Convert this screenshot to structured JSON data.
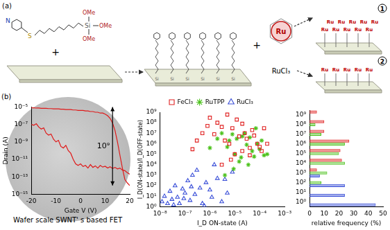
{
  "panel_a": {
    "label": "(a)",
    "molecule": {
      "ring_atom": "N",
      "linker_atom": "S",
      "anchor_atom": "Si",
      "methoxy": [
        "OMe",
        "OMe",
        "OMe"
      ]
    },
    "plus": "+",
    "complex_atom": "Ru",
    "salt": "RuCl₃",
    "routes": [
      "1",
      "2"
    ],
    "surface_atom": "Si"
  },
  "panel_b_label": "(b)",
  "chart_data": [
    {
      "type": "line",
      "x_label": "Gate V (V)",
      "y_label": "Drain (A)",
      "caption": "Wafer scale SWNT' s based FET",
      "x": [
        -20,
        -19,
        -18,
        -17,
        -16,
        -15,
        -14,
        -13,
        -12,
        -11,
        -10,
        -9,
        -8,
        -7,
        -6,
        -5,
        -4,
        -3,
        -2,
        -1,
        0,
        1,
        2,
        3,
        4,
        5,
        6,
        7,
        8,
        9,
        10,
        11,
        12,
        13,
        14,
        15,
        16,
        17,
        18,
        19,
        20
      ],
      "series": [
        {
          "color": "#e01818",
          "values": [
            8e-06,
            8e-06,
            7.5e-06,
            7.5e-06,
            7e-06,
            7e-06,
            7e-06,
            6.5e-06,
            6.5e-06,
            6e-06,
            6e-06,
            6e-06,
            5.5e-06,
            5.5e-06,
            5e-06,
            5e-06,
            5e-06,
            4.5e-06,
            4.5e-06,
            4e-06,
            4e-06,
            4e-06,
            3.5e-06,
            3.5e-06,
            3e-06,
            3e-06,
            2.5e-06,
            2.5e-06,
            2e-06,
            2e-06,
            1.5e-06,
            1e-06,
            5e-07,
            1.5e-07,
            2e-08,
            1e-09,
            3e-11,
            1e-12,
            5e-14,
            2e-14,
            1e-14
          ]
        },
        {
          "color": "#e01818",
          "values": [
            1e-07,
            8e-08,
            1.2e-07,
            5e-08,
            3e-08,
            4e-08,
            1e-08,
            6e-09,
            8e-09,
            2e-09,
            1e-09,
            1.5e-09,
            3e-10,
            2e-10,
            4e-10,
            1e-10,
            5e-11,
            1e-11,
            3e-12,
            2e-12,
            3e-12,
            1.5e-12,
            2e-12,
            1e-12,
            2.5e-12,
            1.2e-12,
            1.8e-12,
            1e-12,
            2e-12,
            1.3e-12,
            1.6e-12,
            1e-12,
            1.4e-12,
            9e-13,
            1.2e-12,
            8e-13,
            1e-12,
            6e-13,
            5e-13,
            3e-13,
            2e-13
          ]
        }
      ],
      "xlim": [
        -20,
        20
      ],
      "xticks": [
        -20,
        -10,
        0,
        10,
        20
      ],
      "ylim": [
        1e-15,
        1e-05
      ],
      "yticks": [
        {
          "value": 1e-15,
          "label": "10⁻¹⁵"
        },
        {
          "value": 1e-13,
          "label": "10⁻¹³"
        },
        {
          "value": 1e-11,
          "label": "10⁻¹¹"
        },
        {
          "value": 1e-09,
          "label": "10⁻⁹"
        },
        {
          "value": 1e-07,
          "label": "10⁻⁷"
        },
        {
          "value": 1e-05,
          "label": "10⁻⁵"
        }
      ],
      "log": "y",
      "grid": false,
      "annotation": {
        "text": "10⁹",
        "x": 13,
        "y": [
          1e-14,
          1e-05
        ]
      }
    },
    {
      "type": "scatter",
      "x_label": "I_D ON-state (A)",
      "y_label": "I_D(ON-state)/I_D(OFF-state)",
      "series": [
        {
          "name": "FeCl₃",
          "color": "#e02020",
          "marker": "square",
          "x": [
            2e-07,
            3e-07,
            5e-07,
            8e-07,
            1e-06,
            1.5e-06,
            2e-06,
            3e-06,
            4e-06,
            5e-06,
            6e-06,
            8e-06,
            1e-05,
            1.2e-05,
            1.5e-05,
            2e-05,
            2.5e-05,
            3e-05,
            4e-05,
            5e-05,
            6e-05,
            8e-05,
            0.0001,
            0.00012,
            0.00015,
            0.0002,
            3e-06,
            7e-06,
            2e-05,
            4e-05
          ],
          "values": [
            300000.0,
            2000000.0,
            10000000.0,
            50000000.0,
            300000000.0,
            8000000.0,
            100000000.0,
            40000000.0,
            2000000.0,
            600000000.0,
            1000000.0,
            30000000.0,
            100000.0,
            200000000.0,
            5000000.0,
            80000000.0,
            10000000.0,
            3000000.0,
            400000.0,
            20000000.0,
            6000000.0,
            1000000.0,
            500000.0,
            200000.0,
            30000000.0,
            1000000.0,
            10000.0,
            30000.0,
            200000.0,
            80000.0
          ]
        },
        {
          "name": "RuTPP",
          "color": "#4cc21c",
          "marker": "star",
          "x": [
            2e-06,
            3e-06,
            5e-06,
            6e-06,
            8e-06,
            1e-05,
            1.2e-05,
            1.5e-05,
            2e-05,
            2.5e-05,
            3e-05,
            4e-05,
            5e-05,
            6e-05,
            8e-05,
            0.0001,
            0.00012,
            0.00015,
            4e-06,
            9e-06,
            1.8e-05,
            3.5e-05,
            7e-05,
            0.0002,
            1e-06
          ],
          "values": [
            3000000.0,
            10000000.0,
            500000.0,
            2000000.0,
            8000000.0,
            100000.0,
            3000000.0,
            20000.0,
            5000000.0,
            10000000.0,
            800000.0,
            4000000.0,
            200000.0,
            60000.0,
            1000000.0,
            300000.0,
            2000000.0,
            80000.0,
            1000.0,
            4000.0,
            50000.0,
            10000.0,
            30000000.0,
            100000.0,
            400000.0
          ]
        },
        {
          "name": "RuCl₃",
          "color": "#3a4fd8",
          "marker": "triangle",
          "x": [
            1.2e-08,
            1.5e-08,
            2e-08,
            2.5e-08,
            3e-08,
            4e-08,
            5e-08,
            6e-08,
            8e-08,
            1e-07,
            1.3e-07,
            1.6e-07,
            2e-07,
            2.5e-07,
            3e-07,
            4e-07,
            5e-07,
            7e-07,
            1e-06,
            1.5e-06,
            2e-06,
            3e-06,
            5e-06,
            8e-06,
            3.5e-08,
            9e-08,
            1.8e-07,
            6e-07,
            1.2e-06,
            4e-06
          ],
          "values": [
            3,
            10,
            2,
            30,
            5,
            100,
            8,
            2,
            50,
            20,
            300,
            4,
            1000,
            15,
            3000,
            60,
            2,
            200,
            40,
            10000,
            500,
            3,
            20,
            2000,
            1.5,
            6,
            80,
            1.2,
            8,
            400
          ]
        }
      ],
      "xlim": [
        1e-08,
        0.001
      ],
      "xticks": [
        {
          "value": 1e-08,
          "label": "10⁻⁸"
        },
        {
          "value": 1e-07,
          "label": "10⁻⁷"
        },
        {
          "value": 1e-06,
          "label": "10⁻⁶"
        },
        {
          "value": 1e-05,
          "label": "10⁻⁵"
        },
        {
          "value": 0.0001,
          "label": "10⁻⁴"
        },
        {
          "value": 0.001,
          "label": "10⁻³"
        }
      ],
      "ylim": [
        1,
        1000000000.0
      ],
      "yticks": [
        {
          "value": 1,
          "label": "10⁰"
        },
        {
          "value": 10,
          "label": "10¹"
        },
        {
          "value": 100,
          "label": "10²"
        },
        {
          "value": 1000,
          "label": "10³"
        },
        {
          "value": 10000,
          "label": "10⁴"
        },
        {
          "value": 100000,
          "label": "10⁵"
        },
        {
          "value": 1000000,
          "label": "10⁶"
        },
        {
          "value": 10000000,
          "label": "10⁷"
        },
        {
          "value": 100000000,
          "label": "10⁸"
        },
        {
          "value": 1000000000,
          "label": "10⁹"
        }
      ],
      "log": true,
      "grid": false,
      "legend": "top"
    },
    {
      "type": "bar",
      "orientation": "horizontal",
      "x_label": "relative frequency (%)",
      "categories": [
        "10⁹",
        "10⁸",
        "10⁷",
        "10⁶",
        "10⁵",
        "10⁴",
        "10³",
        "10²",
        "10¹",
        "10⁰"
      ],
      "series": [
        {
          "color": "#e02020",
          "values": [
            5,
            10,
            10,
            27,
            21,
            22,
            5,
            0,
            0,
            0
          ]
        },
        {
          "color": "#4cc21c",
          "values": [
            0,
            4,
            8,
            24,
            20,
            24,
            12,
            8,
            0,
            0
          ]
        },
        {
          "color": "#3a4fd8",
          "values": [
            0,
            0,
            0,
            0,
            0,
            0,
            7,
            24,
            24,
            45
          ]
        }
      ],
      "xlim": [
        0,
        50
      ],
      "xticks": [
        0,
        10,
        20,
        30,
        40,
        50
      ],
      "grid": false
    }
  ]
}
